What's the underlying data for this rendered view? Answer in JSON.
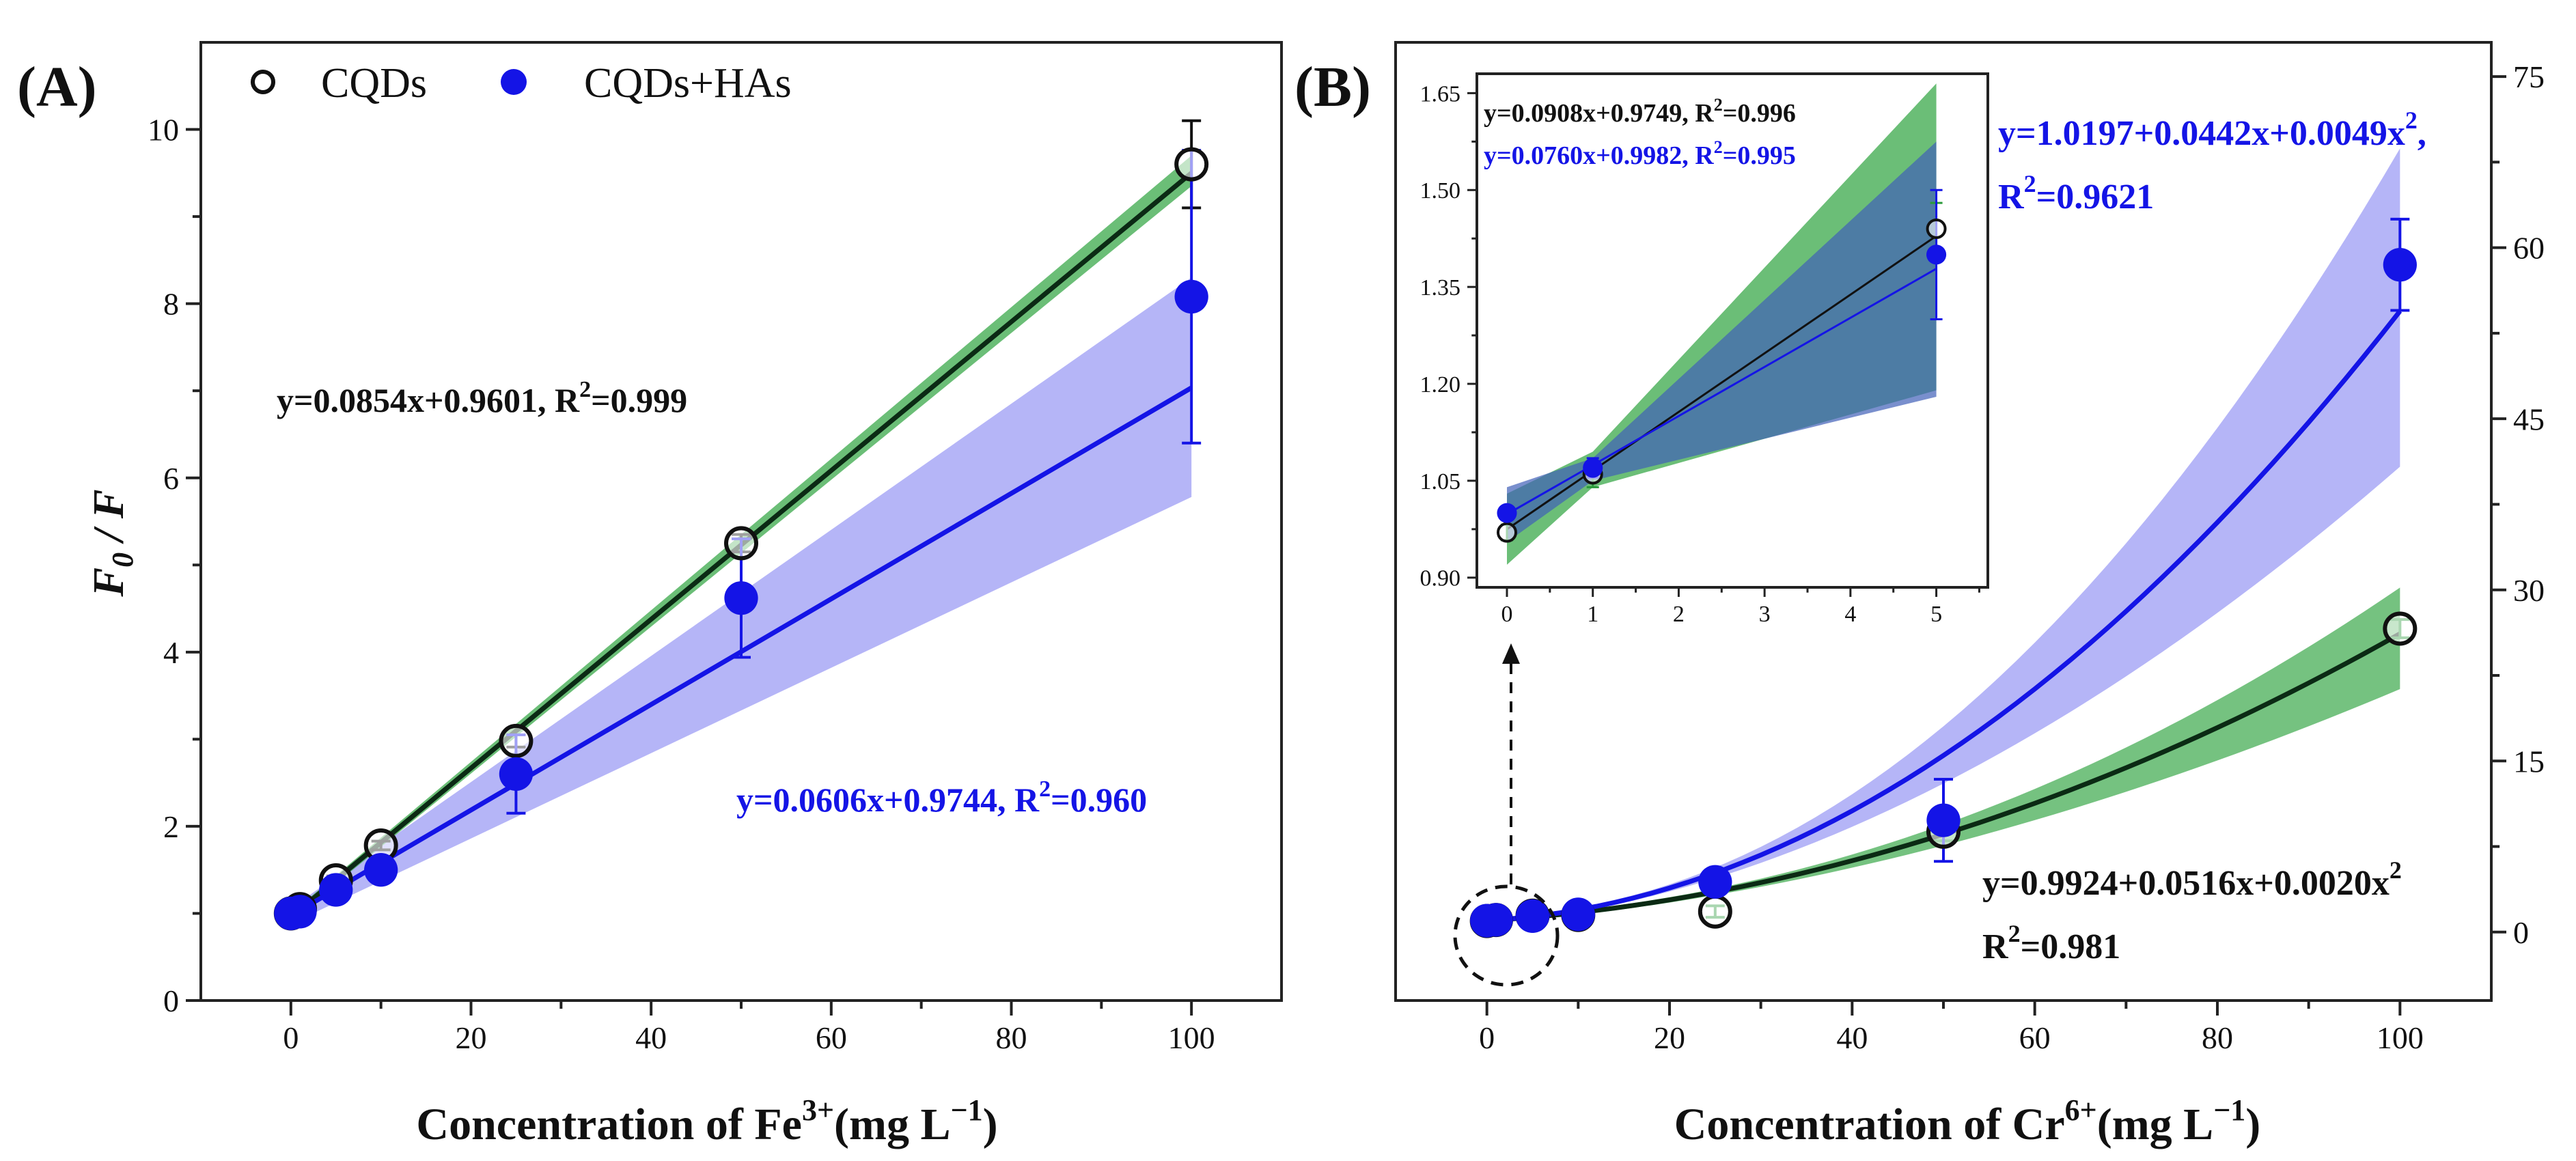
{
  "colors": {
    "black_line": "#0b2a14",
    "blue": "#1414e6",
    "green_band": "#3aa84a",
    "blue_band": "#6b6bf0",
    "axis": "#222222",
    "text": "#111111"
  },
  "chart_data": [
    {
      "panel": "(A)",
      "type": "scatter",
      "xlabel": {
        "main": "Concentration of Fe",
        "sup": "3+",
        "unit_open": "(mg L",
        "unit_sup": "−1",
        "unit_close": ")"
      },
      "ylabel": {
        "f": "F",
        "sub": "0",
        "rest": " / F"
      },
      "xlim": [
        -10,
        110
      ],
      "ylim": [
        0,
        11
      ],
      "xticks": [
        0,
        20,
        40,
        60,
        80,
        100
      ],
      "yticks": [
        0,
        2,
        4,
        6,
        8,
        10
      ],
      "legend": {
        "position": "top-left",
        "items": [
          {
            "label": "CQDs",
            "marker": "open-circle"
          },
          {
            "label": "CQDs+HAs",
            "marker": "filled-circle"
          }
        ]
      },
      "series": [
        {
          "name": "CQDs",
          "x": [
            0,
            1,
            5,
            10,
            25,
            50,
            100
          ],
          "y": [
            1.0,
            1.05,
            1.38,
            1.78,
            2.98,
            5.25,
            9.6
          ],
          "yerr": [
            0.02,
            0.02,
            0.05,
            0.05,
            0.07,
            0.1,
            0.5
          ],
          "fit": {
            "type": "linear",
            "slope": 0.0854,
            "intercept": 0.9601
          },
          "band": [
            [
              0,
              0.92,
              1.0
            ],
            [
              100,
              9.35,
              9.7
            ]
          ]
        },
        {
          "name": "CQDs+HAs",
          "x": [
            0,
            1,
            5,
            10,
            25,
            50,
            100
          ],
          "y": [
            1.0,
            1.02,
            1.27,
            1.5,
            2.6,
            4.62,
            8.08
          ],
          "yerr": [
            0.02,
            0.02,
            0.05,
            0.08,
            0.45,
            0.68,
            1.68
          ],
          "fit": {
            "type": "linear",
            "slope": 0.0606,
            "intercept": 0.9744
          },
          "band": [
            [
              0,
              0.88,
              1.06
            ],
            [
              100,
              5.78,
              8.3
            ]
          ]
        }
      ],
      "annotations": [
        {
          "series": "CQDs",
          "text": "y=0.0854x+0.9601, R",
          "sup": "2",
          "tail": "=0.999"
        },
        {
          "series": "CQDs+HAs",
          "text": "y=0.0606x+0.9744, R",
          "sup": "2",
          "tail": "=0.960"
        }
      ]
    },
    {
      "panel": "(B)",
      "type": "scatter",
      "xlabel": {
        "main": "Concentration of Cr",
        "sup": "6+",
        "unit_open": "(mg L",
        "unit_sup": "−1",
        "unit_close": ")"
      },
      "xlim": [
        -10,
        110
      ],
      "ylim": [
        -6,
        78
      ],
      "xticks": [
        0,
        20,
        40,
        60,
        80,
        100
      ],
      "yticks": [
        0,
        15,
        30,
        45,
        60,
        75
      ],
      "yaxis_side": "right",
      "series": [
        {
          "name": "CQDs",
          "x": [
            0,
            1,
            5,
            10,
            25,
            50,
            100
          ],
          "y": [
            0.97,
            1.06,
            1.44,
            1.5,
            1.8,
            8.8,
            26.6
          ],
          "yerr": [
            0.02,
            0.02,
            0.06,
            0.3,
            0.5,
            0.8,
            0.8
          ],
          "fit": {
            "type": "quadratic",
            "a": 0.9924,
            "b": 0.0516,
            "c": 0.002
          },
          "band_upper_at_100": 30,
          "band_lower_at_100": 21.5
        },
        {
          "name": "CQDs+HAs",
          "x": [
            0,
            1,
            5,
            10,
            25,
            50,
            100
          ],
          "y": [
            1.0,
            1.07,
            1.4,
            1.55,
            4.4,
            9.8,
            58.5
          ],
          "yerr": [
            0.02,
            0.02,
            0.06,
            0.4,
            0.8,
            3.6,
            4.0
          ],
          "fit": {
            "type": "quadratic",
            "a": 1.0197,
            "b": 0.0442,
            "c": 0.0049
          },
          "band_upper_at_100": 68.5,
          "band_lower_at_100": 41
        }
      ],
      "annotations": [
        {
          "series": "CQDs+HAs",
          "line1": "y=1.0197+0.0442x+0.0049x",
          "line1_sup": "2",
          "line1_tail": ",",
          "line2": "R",
          "line2_sup": "2",
          "line2_tail": "=0.9621"
        },
        {
          "series": "CQDs",
          "line1": "y=0.9924+0.0516x+0.0020x",
          "line1_sup": "2",
          "line2": "R",
          "line2_sup": "2",
          "line2_tail": "=0.981"
        }
      ],
      "inset": {
        "xlim": [
          -0.35,
          5.6
        ],
        "ylim": [
          0.885,
          1.68
        ],
        "xticks": [
          0,
          1,
          2,
          3,
          4,
          5
        ],
        "yticks": [
          0.9,
          1.05,
          1.2,
          1.35,
          1.5,
          1.65
        ],
        "ytick_labels": [
          "0.90",
          "1.05",
          "1.20",
          "1.35",
          "1.50",
          "1.65"
        ],
        "series": [
          {
            "name": "CQDs",
            "x": [
              0,
              1,
              5
            ],
            "y": [
              0.97,
              1.06,
              1.44
            ],
            "yerr": [
              0.012,
              0.02,
              0.04
            ],
            "fit": {
              "slope": 0.0908,
              "intercept": 0.9749
            },
            "band": [
              [
                0,
                0.92,
                1.03
              ],
              [
                1,
                1.04,
                1.095
              ],
              [
                5,
                1.19,
                1.665
              ]
            ]
          },
          {
            "name": "CQDs+HAs",
            "x": [
              0,
              1,
              5
            ],
            "y": [
              1.0,
              1.07,
              1.4
            ],
            "yerr": [
              0.01,
              0.015,
              0.1
            ],
            "fit": {
              "slope": 0.076,
              "intercept": 0.9982
            },
            "band": [
              [
                0,
                0.955,
                1.04
              ],
              [
                1,
                1.05,
                1.085
              ],
              [
                5,
                1.18,
                1.575
              ]
            ]
          }
        ],
        "annotations": [
          {
            "series": "CQDs",
            "text": "y=0.0908x+0.9749, R",
            "sup": "2",
            "tail": "=0.996"
          },
          {
            "series": "CQDs+HAs",
            "text": "y=0.0760x+0.9982, R",
            "sup": "2",
            "tail": "=0.995"
          }
        ]
      }
    }
  ]
}
